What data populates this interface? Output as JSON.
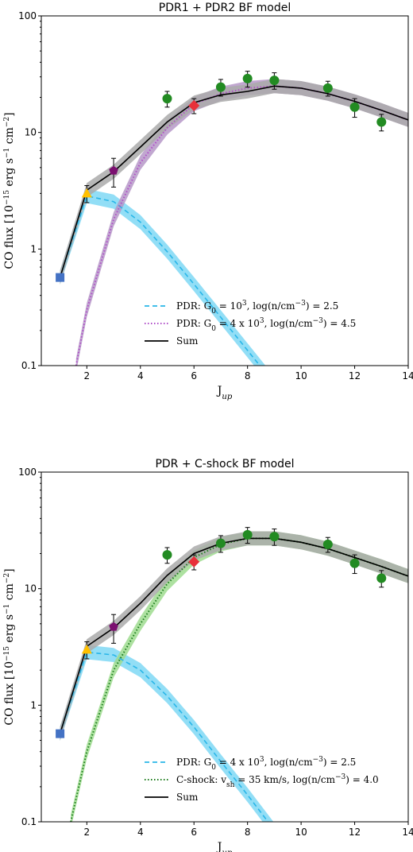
{
  "chart_data": [
    {
      "type": "line",
      "title": "PDR1 + PDR2 BF model",
      "xlabel": "J_up",
      "ylabel": "CO flux [10⁻¹⁵ erg s⁻¹ cm⁻²]",
      "xlim": [
        0.3,
        14
      ],
      "ylim": [
        0.1,
        100
      ],
      "yscale": "log",
      "xticks": [
        "2",
        "4",
        "6",
        "8",
        "10",
        "12",
        "14"
      ],
      "yticks": [
        "0.1",
        "1",
        "10",
        "100"
      ],
      "legend_position": "lower-right",
      "observations": [
        {
          "x": 1,
          "y": 0.57,
          "yerr": 0.0,
          "marker": "square",
          "color": "#4472c4"
        },
        {
          "x": 2,
          "y": 3.0,
          "yerr": 0.5,
          "marker": "triangle",
          "color": "#ffc000"
        },
        {
          "x": 3,
          "y": 4.7,
          "yerr": 1.3,
          "marker": "pentagon",
          "color": "#7b1070"
        },
        {
          "x": 5,
          "y": 19.5,
          "yerr": 3.0,
          "marker": "circle",
          "color": "#228b22"
        },
        {
          "x": 6,
          "y": 17.0,
          "yerr": 2.5,
          "marker": "diamond",
          "color": "#e8303a"
        },
        {
          "x": 7,
          "y": 24.5,
          "yerr": 4.0,
          "marker": "circle",
          "color": "#228b22"
        },
        {
          "x": 8,
          "y": 29.0,
          "yerr": 4.5,
          "marker": "circle",
          "color": "#228b22"
        },
        {
          "x": 9,
          "y": 28.0,
          "yerr": 4.5,
          "marker": "circle",
          "color": "#228b22"
        },
        {
          "x": 11,
          "y": 24.0,
          "yerr": 3.5,
          "marker": "circle",
          "color": "#228b22"
        },
        {
          "x": 12,
          "y": 16.5,
          "yerr": 3.0,
          "marker": "circle",
          "color": "#228b22"
        },
        {
          "x": 13,
          "y": 12.3,
          "yerr": 2.0,
          "marker": "circle",
          "color": "#228b22"
        }
      ],
      "series": [
        {
          "name": "PDR: G₀ = 10³, log(n/cm⁻³) = 2.5",
          "style": "dashed",
          "color": "#29b6e8",
          "band_color": "#7fd8f5",
          "x": [
            1,
            2,
            3,
            4,
            5,
            6,
            7,
            8,
            9
          ],
          "y": [
            0.57,
            2.85,
            2.55,
            1.7,
            0.95,
            0.5,
            0.26,
            0.135,
            0.07
          ]
        },
        {
          "name": "PDR: G₀ = 4 x 10³, log(n/cm⁻³) = 4.5",
          "style": "dotted",
          "color": "#b04fc8",
          "band_color": "#b698c8",
          "x": [
            1.6,
            2,
            3,
            4,
            5,
            6,
            7,
            8,
            9,
            10,
            11,
            12,
            13,
            14
          ],
          "y": [
            0.1,
            0.3,
            1.8,
            5.5,
            11.0,
            17.5,
            21.5,
            24.0,
            25.0,
            24.0,
            21.5,
            18.5,
            15.5,
            12.8
          ]
        },
        {
          "name": "Sum",
          "style": "solid",
          "color": "#000000",
          "band_color": "#aaaaaa",
          "x": [
            1,
            2,
            3,
            4,
            5,
            6,
            7,
            8,
            9,
            10,
            11,
            12,
            13,
            14
          ],
          "y": [
            0.57,
            3.2,
            4.6,
            7.5,
            12.3,
            18.0,
            21.0,
            22.5,
            25.0,
            24.0,
            21.5,
            18.5,
            15.5,
            12.8
          ]
        }
      ]
    },
    {
      "type": "line",
      "title": "PDR + C-shock BF model",
      "xlabel": "J_up",
      "ylabel": "CO flux [10⁻¹⁵ erg s⁻¹ cm⁻²]",
      "xlim": [
        0.3,
        14
      ],
      "ylim": [
        0.1,
        100
      ],
      "yscale": "log",
      "xticks": [
        "2",
        "4",
        "6",
        "8",
        "10",
        "12",
        "14"
      ],
      "yticks": [
        "0.1",
        "1",
        "10",
        "100"
      ],
      "legend_position": "lower-right",
      "observations": [
        {
          "x": 1,
          "y": 0.57,
          "yerr": 0.0,
          "marker": "square",
          "color": "#4472c4"
        },
        {
          "x": 2,
          "y": 3.0,
          "yerr": 0.5,
          "marker": "triangle",
          "color": "#ffc000"
        },
        {
          "x": 3,
          "y": 4.7,
          "yerr": 1.3,
          "marker": "pentagon",
          "color": "#7b1070"
        },
        {
          "x": 5,
          "y": 19.5,
          "yerr": 3.0,
          "marker": "circle",
          "color": "#228b22"
        },
        {
          "x": 6,
          "y": 17.0,
          "yerr": 2.5,
          "marker": "diamond",
          "color": "#e8303a"
        },
        {
          "x": 7,
          "y": 24.5,
          "yerr": 4.0,
          "marker": "circle",
          "color": "#228b22"
        },
        {
          "x": 8,
          "y": 29.0,
          "yerr": 4.5,
          "marker": "circle",
          "color": "#228b22"
        },
        {
          "x": 9,
          "y": 28.0,
          "yerr": 4.5,
          "marker": "circle",
          "color": "#228b22"
        },
        {
          "x": 11,
          "y": 24.0,
          "yerr": 3.5,
          "marker": "circle",
          "color": "#228b22"
        },
        {
          "x": 12,
          "y": 16.5,
          "yerr": 3.0,
          "marker": "circle",
          "color": "#228b22"
        },
        {
          "x": 13,
          "y": 12.3,
          "yerr": 2.0,
          "marker": "circle",
          "color": "#228b22"
        }
      ],
      "series": [
        {
          "name": "PDR: G₀ = 4 x 10³, log(n/cm⁻³) = 2.5",
          "style": "dashed",
          "color": "#29b6e8",
          "band_color": "#7fd8f5",
          "x": [
            1,
            2,
            3,
            4,
            5,
            6,
            7,
            8,
            9
          ],
          "y": [
            0.57,
            2.85,
            2.7,
            2.0,
            1.2,
            0.65,
            0.33,
            0.17,
            0.085
          ]
        },
        {
          "name": "C-shock: v_sh = 35 km/s, log(n/cm⁻³) = 4.0",
          "style": "dotted",
          "color": "#1e7d1e",
          "band_color": "#9fdc8f",
          "x": [
            1.4,
            2,
            3,
            4,
            5,
            6,
            7,
            8,
            9,
            10,
            11,
            12,
            13,
            14
          ],
          "y": [
            0.1,
            0.4,
            2.0,
            5.0,
            11.0,
            18.5,
            24.0,
            27.0,
            27.0,
            25.0,
            22.0,
            18.5,
            15.5,
            12.8
          ]
        },
        {
          "name": "Sum",
          "style": "solid",
          "color": "#000000",
          "band_color": "#aaaaaa",
          "x": [
            1,
            2,
            3,
            4,
            5,
            6,
            7,
            8,
            9,
            10,
            11,
            12,
            13,
            14
          ],
          "y": [
            0.57,
            3.2,
            4.6,
            7.5,
            13.0,
            20.0,
            24.5,
            27.0,
            27.0,
            25.0,
            22.0,
            18.5,
            15.5,
            12.8
          ]
        }
      ]
    }
  ]
}
